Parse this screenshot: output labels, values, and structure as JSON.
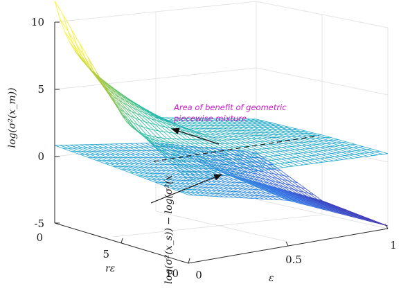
{
  "chart_data": {
    "type": "surface",
    "title": "",
    "zlabel": "log(σ²(x_m))",
    "xlabel": "ε",
    "ylabel": "rε",
    "overlay_label": "log(σ²(x_s)) − log(σ²(x",
    "zlim": [
      -5,
      10
    ],
    "xlim": [
      0,
      1
    ],
    "ylim": [
      0,
      10
    ],
    "z_ticks": [
      "10",
      "5",
      "0",
      "-5"
    ],
    "x_ticks": [
      "0",
      "0.5",
      "1"
    ],
    "y_ticks": [
      "0",
      "5",
      "10"
    ],
    "grid": true,
    "annotation": {
      "text_line1": "Area of benefit of geometric",
      "text_line2": "piecewise mixture"
    },
    "surfaces": [
      {
        "id": "upper",
        "x": [
          0,
          0.5,
          1
        ],
        "y": [
          0,
          5,
          10
        ],
        "z": [
          [
            8.0,
            2.0,
            1.0
          ],
          [
            2.8,
            1.6,
            0.9
          ],
          [
            1.2,
            0.9,
            0.6
          ]
        ],
        "colormap": "parula"
      },
      {
        "id": "lower",
        "x": [
          0,
          0.5,
          1
        ],
        "y": [
          0,
          5,
          10
        ],
        "z": [
          [
            0.8,
            0.1,
            -1.5
          ],
          [
            0.5,
            -0.8,
            -4.0
          ],
          [
            0.1,
            -1.6,
            -4.8
          ]
        ],
        "colormap": "parula"
      }
    ]
  }
}
